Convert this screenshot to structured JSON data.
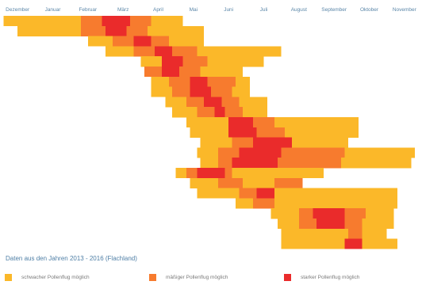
{
  "colors": {
    "weak": "#fbb829",
    "moderate": "#f77b2e",
    "strong": "#ea2b2b",
    "label": "#5a86a8"
  },
  "source_note": "Daten aus den Jahren 2013 - 2016 (Flachland)",
  "legend": [
    {
      "label": "schwacher Pollenflug möglich",
      "level": "weak"
    },
    {
      "label": "mäßiger Pollenflug möglich",
      "level": "moderate"
    },
    {
      "label": "starker Pollenflug möglich",
      "level": "strong"
    }
  ],
  "chart_data": {
    "type": "heatmap",
    "title": "",
    "categories": [
      "Dezember",
      "Januar",
      "Februar",
      "März",
      "April",
      "Mai",
      "Juni",
      "Juli",
      "August",
      "September",
      "Oktober",
      "November"
    ],
    "legend_position": "bottom",
    "levels": [
      "weak",
      "moderate",
      "strong"
    ],
    "rows": [
      {
        "segments": [
          {
            "start": 0.1,
            "end": 2.3,
            "level": "weak"
          },
          {
            "start": 2.3,
            "end": 2.9,
            "level": "moderate"
          },
          {
            "start": 2.9,
            "end": 3.7,
            "level": "strong"
          },
          {
            "start": 3.7,
            "end": 4.3,
            "level": "moderate"
          },
          {
            "start": 4.3,
            "end": 5.2,
            "level": "weak"
          }
        ]
      },
      {
        "segments": [
          {
            "start": 0.5,
            "end": 2.3,
            "level": "weak"
          },
          {
            "start": 2.3,
            "end": 3.0,
            "level": "moderate"
          },
          {
            "start": 3.0,
            "end": 3.6,
            "level": "strong"
          },
          {
            "start": 3.6,
            "end": 4.2,
            "level": "moderate"
          },
          {
            "start": 4.2,
            "end": 5.8,
            "level": "weak"
          }
        ]
      },
      {
        "segments": [
          {
            "start": 2.5,
            "end": 3.2,
            "level": "weak"
          },
          {
            "start": 3.2,
            "end": 3.8,
            "level": "moderate"
          },
          {
            "start": 3.8,
            "end": 4.3,
            "level": "strong"
          },
          {
            "start": 4.3,
            "end": 4.8,
            "level": "moderate"
          },
          {
            "start": 4.8,
            "end": 5.8,
            "level": "weak"
          }
        ]
      },
      {
        "segments": [
          {
            "start": 3.0,
            "end": 3.8,
            "level": "weak"
          },
          {
            "start": 3.8,
            "end": 4.4,
            "level": "moderate"
          },
          {
            "start": 4.4,
            "end": 4.9,
            "level": "strong"
          },
          {
            "start": 4.9,
            "end": 5.6,
            "level": "moderate"
          },
          {
            "start": 5.6,
            "end": 8.0,
            "level": "weak"
          }
        ]
      },
      {
        "segments": [
          {
            "start": 4.0,
            "end": 4.6,
            "level": "weak"
          },
          {
            "start": 4.6,
            "end": 5.2,
            "level": "strong"
          },
          {
            "start": 5.2,
            "end": 5.9,
            "level": "moderate"
          },
          {
            "start": 5.9,
            "end": 7.5,
            "level": "weak"
          }
        ]
      },
      {
        "segments": [
          {
            "start": 4.1,
            "end": 4.6,
            "level": "moderate"
          },
          {
            "start": 4.6,
            "end": 5.1,
            "level": "strong"
          },
          {
            "start": 5.1,
            "end": 5.7,
            "level": "moderate"
          },
          {
            "start": 5.7,
            "end": 6.9,
            "level": "weak"
          }
        ]
      },
      {
        "segments": [
          {
            "start": 4.3,
            "end": 4.8,
            "level": "weak"
          },
          {
            "start": 4.8,
            "end": 5.4,
            "level": "moderate"
          },
          {
            "start": 5.4,
            "end": 5.9,
            "level": "strong"
          },
          {
            "start": 5.9,
            "end": 6.7,
            "level": "moderate"
          },
          {
            "start": 6.7,
            "end": 7.1,
            "level": "weak"
          }
        ]
      },
      {
        "segments": [
          {
            "start": 4.3,
            "end": 4.9,
            "level": "weak"
          },
          {
            "start": 4.9,
            "end": 5.4,
            "level": "moderate"
          },
          {
            "start": 5.4,
            "end": 6.0,
            "level": "strong"
          },
          {
            "start": 6.0,
            "end": 6.6,
            "level": "moderate"
          },
          {
            "start": 6.6,
            "end": 7.1,
            "level": "weak"
          }
        ]
      },
      {
        "segments": [
          {
            "start": 4.7,
            "end": 5.3,
            "level": "weak"
          },
          {
            "start": 5.3,
            "end": 5.8,
            "level": "moderate"
          },
          {
            "start": 5.8,
            "end": 6.3,
            "level": "strong"
          },
          {
            "start": 6.3,
            "end": 6.8,
            "level": "moderate"
          },
          {
            "start": 6.8,
            "end": 7.6,
            "level": "weak"
          }
        ]
      },
      {
        "segments": [
          {
            "start": 4.9,
            "end": 5.6,
            "level": "weak"
          },
          {
            "start": 5.6,
            "end": 6.1,
            "level": "moderate"
          },
          {
            "start": 6.1,
            "end": 6.4,
            "level": "strong"
          },
          {
            "start": 6.4,
            "end": 6.9,
            "level": "moderate"
          },
          {
            "start": 6.9,
            "end": 7.6,
            "level": "weak"
          }
        ]
      },
      {
        "segments": [
          {
            "start": 5.3,
            "end": 6.5,
            "level": "weak"
          },
          {
            "start": 6.5,
            "end": 7.2,
            "level": "strong"
          },
          {
            "start": 7.2,
            "end": 7.8,
            "level": "moderate"
          },
          {
            "start": 7.8,
            "end": 10.2,
            "level": "weak"
          }
        ]
      },
      {
        "segments": [
          {
            "start": 5.4,
            "end": 6.5,
            "level": "weak"
          },
          {
            "start": 6.5,
            "end": 7.3,
            "level": "strong"
          },
          {
            "start": 7.3,
            "end": 8.1,
            "level": "moderate"
          },
          {
            "start": 8.1,
            "end": 10.2,
            "level": "weak"
          }
        ]
      },
      {
        "segments": [
          {
            "start": 5.7,
            "end": 6.6,
            "level": "weak"
          },
          {
            "start": 6.6,
            "end": 7.2,
            "level": "moderate"
          },
          {
            "start": 7.2,
            "end": 8.3,
            "level": "strong"
          },
          {
            "start": 8.3,
            "end": 9.9,
            "level": "weak"
          }
        ]
      },
      {
        "segments": [
          {
            "start": 5.6,
            "end": 6.2,
            "level": "weak"
          },
          {
            "start": 6.2,
            "end": 6.8,
            "level": "moderate"
          },
          {
            "start": 6.8,
            "end": 8.0,
            "level": "strong"
          },
          {
            "start": 8.0,
            "end": 9.8,
            "level": "moderate"
          },
          {
            "start": 9.8,
            "end": 11.8,
            "level": "weak"
          }
        ]
      },
      {
        "segments": [
          {
            "start": 5.7,
            "end": 6.2,
            "level": "weak"
          },
          {
            "start": 6.2,
            "end": 6.6,
            "level": "moderate"
          },
          {
            "start": 6.6,
            "end": 7.9,
            "level": "strong"
          },
          {
            "start": 7.9,
            "end": 9.7,
            "level": "moderate"
          },
          {
            "start": 9.7,
            "end": 11.7,
            "level": "weak"
          }
        ]
      },
      {
        "segments": [
          {
            "start": 5.0,
            "end": 5.3,
            "level": "weak"
          },
          {
            "start": 5.3,
            "end": 5.6,
            "level": "moderate"
          },
          {
            "start": 5.6,
            "end": 6.4,
            "level": "strong"
          },
          {
            "start": 6.4,
            "end": 6.6,
            "level": "moderate"
          },
          {
            "start": 6.6,
            "end": 9.2,
            "level": "weak"
          }
        ]
      },
      {
        "segments": [
          {
            "start": 5.4,
            "end": 6.2,
            "level": "weak"
          },
          {
            "start": 6.2,
            "end": 6.9,
            "level": "moderate"
          },
          {
            "start": 6.9,
            "end": 7.8,
            "level": "weak"
          },
          {
            "start": 7.8,
            "end": 8.6,
            "level": "moderate"
          }
        ]
      },
      {
        "segments": [
          {
            "start": 5.6,
            "end": 6.8,
            "level": "weak"
          },
          {
            "start": 6.8,
            "end": 7.3,
            "level": "moderate"
          },
          {
            "start": 7.3,
            "end": 7.8,
            "level": "strong"
          },
          {
            "start": 7.8,
            "end": 11.3,
            "level": "weak"
          }
        ]
      },
      {
        "segments": [
          {
            "start": 6.7,
            "end": 7.2,
            "level": "weak"
          },
          {
            "start": 7.2,
            "end": 7.8,
            "level": "moderate"
          },
          {
            "start": 7.8,
            "end": 11.3,
            "level": "weak"
          }
        ]
      },
      {
        "segments": [
          {
            "start": 7.7,
            "end": 8.5,
            "level": "weak"
          },
          {
            "start": 8.5,
            "end": 8.9,
            "level": "moderate"
          },
          {
            "start": 8.9,
            "end": 9.8,
            "level": "strong"
          },
          {
            "start": 9.8,
            "end": 10.4,
            "level": "moderate"
          },
          {
            "start": 10.4,
            "end": 11.2,
            "level": "weak"
          }
        ]
      },
      {
        "segments": [
          {
            "start": 7.9,
            "end": 8.5,
            "level": "weak"
          },
          {
            "start": 8.5,
            "end": 9.0,
            "level": "moderate"
          },
          {
            "start": 9.0,
            "end": 9.8,
            "level": "strong"
          },
          {
            "start": 9.8,
            "end": 10.3,
            "level": "moderate"
          },
          {
            "start": 10.3,
            "end": 11.2,
            "level": "weak"
          }
        ]
      },
      {
        "segments": [
          {
            "start": 8.0,
            "end": 9.9,
            "level": "weak"
          },
          {
            "start": 9.9,
            "end": 10.3,
            "level": "moderate"
          },
          {
            "start": 10.3,
            "end": 11.0,
            "level": "weak"
          }
        ]
      },
      {
        "segments": [
          {
            "start": 8.0,
            "end": 9.8,
            "level": "weak"
          },
          {
            "start": 9.8,
            "end": 10.3,
            "level": "strong"
          },
          {
            "start": 10.3,
            "end": 11.3,
            "level": "weak"
          }
        ]
      }
    ]
  }
}
